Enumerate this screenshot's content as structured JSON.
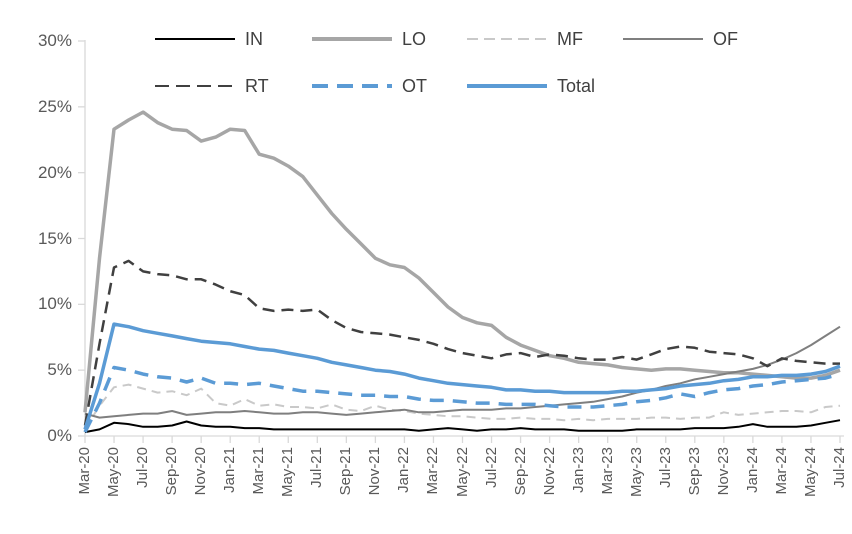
{
  "chart_data": {
    "type": "line",
    "title": "",
    "xlabel": "",
    "ylabel": "",
    "ylim": [
      0,
      30
    ],
    "grid": false,
    "legend_position": "top",
    "axis_color": "#d9d9d9",
    "tick_label_color": "#595959",
    "legend_text_color": "#404040",
    "y_ticks": [
      {
        "value": 0,
        "label": "0%"
      },
      {
        "value": 5,
        "label": "5%"
      },
      {
        "value": 10,
        "label": "10%"
      },
      {
        "value": 15,
        "label": "15%"
      },
      {
        "value": 20,
        "label": "20%"
      },
      {
        "value": 25,
        "label": "25%"
      },
      {
        "value": 30,
        "label": "30%"
      }
    ],
    "x_tick_every": 2,
    "months": [
      "Mar-20",
      "Apr-20",
      "May-20",
      "Jun-20",
      "Jul-20",
      "Aug-20",
      "Sep-20",
      "Oct-20",
      "Nov-20",
      "Dec-20",
      "Jan-21",
      "Feb-21",
      "Mar-21",
      "Apr-21",
      "May-21",
      "Jun-21",
      "Jul-21",
      "Aug-21",
      "Sep-21",
      "Oct-21",
      "Nov-21",
      "Dec-21",
      "Jan-22",
      "Feb-22",
      "Mar-22",
      "Apr-22",
      "May-22",
      "Jun-22",
      "Jul-22",
      "Aug-22",
      "Sep-22",
      "Oct-22",
      "Nov-22",
      "Dec-22",
      "Jan-23",
      "Feb-23",
      "Mar-23",
      "Apr-23",
      "May-23",
      "Jun-23",
      "Jul-23",
      "Aug-23",
      "Sep-23",
      "Oct-23",
      "Nov-23",
      "Dec-23",
      "Jan-24",
      "Feb-24",
      "Mar-24",
      "Apr-24",
      "May-24",
      "Jun-24",
      "Jul-24"
    ],
    "series": [
      {
        "name": "IN",
        "color": "#000000",
        "style": "solid",
        "width": 2,
        "values": [
          0.3,
          0.5,
          1.0,
          0.9,
          0.7,
          0.7,
          0.8,
          1.1,
          0.8,
          0.7,
          0.7,
          0.6,
          0.6,
          0.5,
          0.5,
          0.5,
          0.5,
          0.5,
          0.5,
          0.5,
          0.5,
          0.5,
          0.5,
          0.4,
          0.5,
          0.6,
          0.5,
          0.4,
          0.5,
          0.5,
          0.6,
          0.5,
          0.5,
          0.5,
          0.4,
          0.4,
          0.4,
          0.4,
          0.5,
          0.5,
          0.5,
          0.5,
          0.6,
          0.6,
          0.6,
          0.7,
          0.9,
          0.7,
          0.7,
          0.7,
          0.8,
          1.0,
          1.2
        ]
      },
      {
        "name": "LO",
        "color": "#a6a6a6",
        "style": "solid",
        "width": 3.5,
        "values": [
          1.8,
          13.5,
          23.3,
          24.0,
          24.6,
          23.8,
          23.3,
          23.2,
          22.4,
          22.7,
          23.3,
          23.2,
          21.4,
          21.1,
          20.5,
          19.7,
          18.3,
          16.9,
          15.7,
          14.6,
          13.5,
          13.0,
          12.8,
          12.0,
          10.9,
          9.8,
          9.0,
          8.6,
          8.4,
          7.5,
          6.9,
          6.5,
          6.1,
          5.9,
          5.6,
          5.5,
          5.4,
          5.2,
          5.1,
          5.0,
          5.1,
          5.1,
          5.0,
          4.9,
          4.8,
          4.8,
          4.7,
          4.6,
          4.5,
          4.4,
          4.4,
          4.6,
          5.0
        ]
      },
      {
        "name": "MF",
        "color": "#c9c9c9",
        "style": "dashed",
        "dash": "9 6",
        "width": 2,
        "values": [
          0.5,
          2.3,
          3.7,
          3.9,
          3.6,
          3.3,
          3.4,
          3.1,
          3.6,
          2.5,
          2.3,
          2.8,
          2.3,
          2.4,
          2.2,
          2.2,
          2.1,
          2.4,
          2.0,
          1.9,
          2.3,
          2.0,
          1.9,
          1.7,
          1.6,
          1.5,
          1.5,
          1.4,
          1.3,
          1.3,
          1.4,
          1.3,
          1.3,
          1.2,
          1.3,
          1.2,
          1.3,
          1.3,
          1.3,
          1.4,
          1.4,
          1.3,
          1.4,
          1.4,
          1.8,
          1.6,
          1.7,
          1.8,
          1.9,
          1.9,
          1.8,
          2.2,
          2.3
        ]
      },
      {
        "name": "OF",
        "color": "#7f7f7f",
        "style": "solid",
        "width": 2,
        "values": [
          1.7,
          1.4,
          1.5,
          1.6,
          1.7,
          1.7,
          1.9,
          1.6,
          1.7,
          1.8,
          1.8,
          1.9,
          1.8,
          1.7,
          1.7,
          1.8,
          1.8,
          1.7,
          1.6,
          1.7,
          1.8,
          1.9,
          2.0,
          1.8,
          1.8,
          1.9,
          2.0,
          2.0,
          2.0,
          2.1,
          2.1,
          2.2,
          2.3,
          2.4,
          2.5,
          2.6,
          2.8,
          3.0,
          3.3,
          3.5,
          3.8,
          4.0,
          4.3,
          4.5,
          4.7,
          4.9,
          5.1,
          5.4,
          5.8,
          6.3,
          6.9,
          7.6,
          8.3
        ]
      },
      {
        "name": "RT",
        "color": "#404040",
        "style": "dashed",
        "dash": "12 7",
        "width": 2.5,
        "values": [
          0.8,
          7.0,
          12.8,
          13.3,
          12.5,
          12.3,
          12.2,
          11.9,
          11.9,
          11.5,
          11.0,
          10.7,
          9.7,
          9.5,
          9.6,
          9.5,
          9.6,
          8.8,
          8.2,
          7.9,
          7.8,
          7.7,
          7.5,
          7.3,
          7.0,
          6.6,
          6.3,
          6.1,
          5.9,
          6.2,
          6.3,
          6.0,
          6.2,
          6.1,
          5.9,
          5.8,
          5.8,
          6.0,
          5.8,
          6.2,
          6.6,
          6.8,
          6.7,
          6.4,
          6.3,
          6.2,
          5.9,
          5.3,
          5.9,
          5.7,
          5.6,
          5.5,
          5.5
        ]
      },
      {
        "name": "OT",
        "color": "#5b9bd5",
        "style": "dashed",
        "dash": "14 9",
        "width": 3.5,
        "values": [
          0.3,
          2.5,
          5.2,
          5.0,
          4.7,
          4.5,
          4.4,
          4.1,
          4.4,
          4.0,
          4.0,
          3.9,
          4.0,
          3.8,
          3.6,
          3.4,
          3.4,
          3.3,
          3.2,
          3.1,
          3.1,
          3.0,
          3.0,
          2.8,
          2.7,
          2.7,
          2.6,
          2.5,
          2.5,
          2.4,
          2.4,
          2.4,
          2.3,
          2.2,
          2.2,
          2.2,
          2.3,
          2.4,
          2.6,
          2.7,
          2.9,
          3.2,
          3.0,
          3.3,
          3.5,
          3.6,
          3.8,
          3.9,
          4.1,
          4.2,
          4.3,
          4.4,
          4.7
        ]
      },
      {
        "name": "Total",
        "color": "#5b9bd5",
        "style": "solid",
        "width": 3.5,
        "values": [
          0.5,
          4.0,
          8.5,
          8.3,
          8.0,
          7.8,
          7.6,
          7.4,
          7.2,
          7.1,
          7.0,
          6.8,
          6.6,
          6.5,
          6.3,
          6.1,
          5.9,
          5.6,
          5.4,
          5.2,
          5.0,
          4.9,
          4.7,
          4.4,
          4.2,
          4.0,
          3.9,
          3.8,
          3.7,
          3.5,
          3.5,
          3.4,
          3.4,
          3.3,
          3.3,
          3.3,
          3.3,
          3.4,
          3.4,
          3.5,
          3.6,
          3.8,
          3.9,
          4.0,
          4.2,
          4.3,
          4.5,
          4.5,
          4.6,
          4.6,
          4.7,
          4.9,
          5.3
        ]
      }
    ]
  }
}
